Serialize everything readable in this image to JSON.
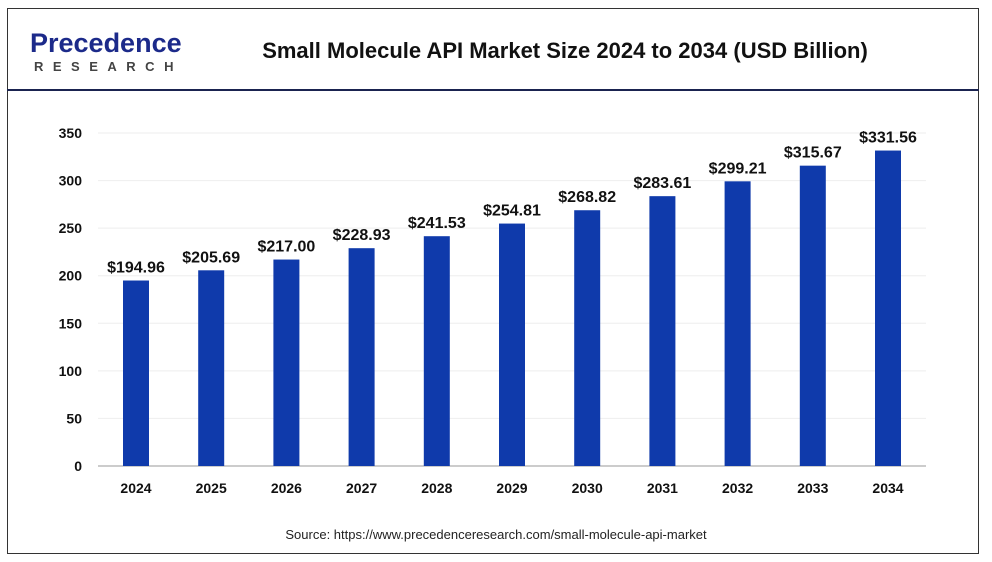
{
  "logo": {
    "brand": "Precedence",
    "sub": "RESEARCH"
  },
  "chart_data": {
    "type": "bar",
    "title": "Small Molecule API Market Size 2024 to 2034 (USD Billion)",
    "categories": [
      "2024",
      "2025",
      "2026",
      "2027",
      "2028",
      "2029",
      "2030",
      "2031",
      "2032",
      "2033",
      "2034"
    ],
    "values": [
      194.96,
      205.69,
      217.0,
      228.93,
      241.53,
      254.81,
      268.82,
      283.61,
      299.21,
      315.67,
      331.56
    ],
    "data_labels": [
      "$194.96",
      "$205.69",
      "$217.00",
      "$228.93",
      "$241.53",
      "$254.81",
      "$268.82",
      "$283.61",
      "$299.21",
      "$315.67",
      "$331.56"
    ],
    "yticks": [
      "0",
      "50",
      "100",
      "150",
      "200",
      "250",
      "300",
      "350"
    ],
    "ylim": [
      0,
      350
    ],
    "xlabel": "",
    "ylabel": "",
    "grid": true,
    "bar_color": "#0f3aab"
  },
  "source": "Source: https://www.precedenceresearch.com/small-molecule-api-market"
}
